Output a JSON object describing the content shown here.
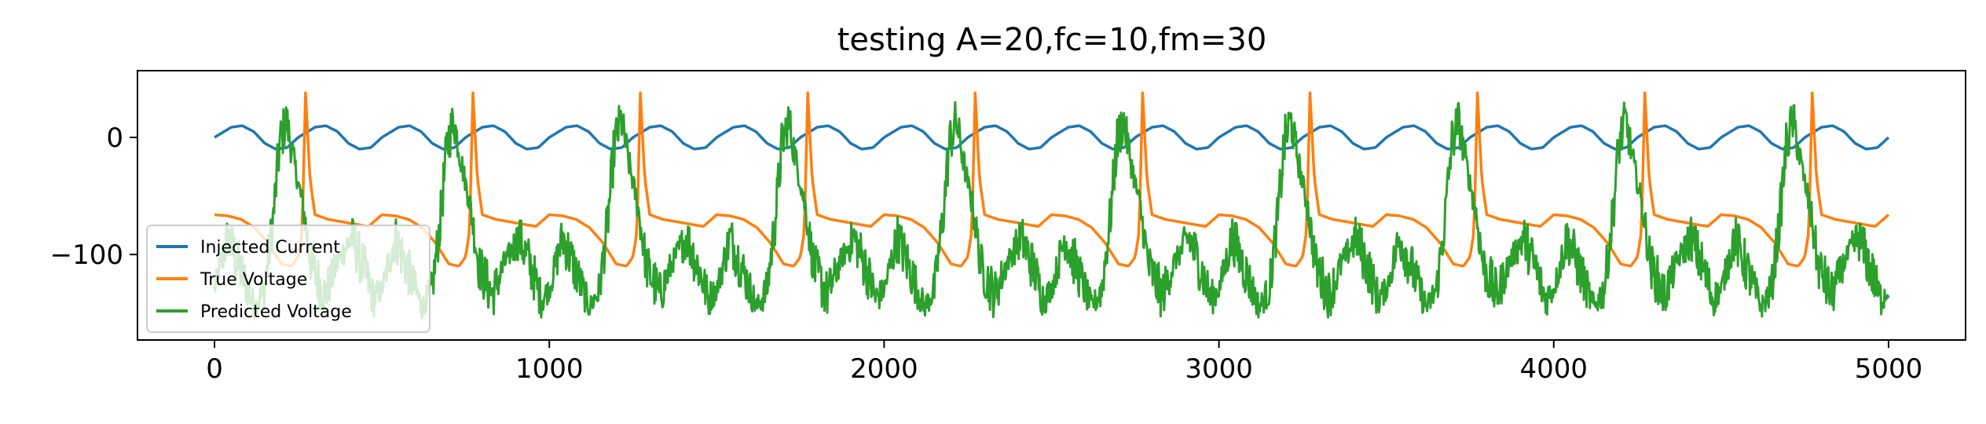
{
  "chart_data": {
    "type": "line",
    "title": "testing A=20,fc=10,fm=30",
    "xlabel": "",
    "ylabel": "",
    "xlim": [
      -230,
      5230
    ],
    "ylim": [
      -173,
      57
    ],
    "xticks": [
      0,
      1000,
      2000,
      3000,
      4000,
      5000
    ],
    "xtick_labels": [
      "0",
      "1000",
      "2000",
      "3000",
      "4000",
      "5000"
    ],
    "yticks": [
      0,
      -100
    ],
    "ytick_labels": [
      "0",
      "−100"
    ],
    "grid": false,
    "legend_position": "lower-left",
    "series": [
      {
        "name": "Injected Current",
        "color": "#1f77b4",
        "x": [
          0,
          50,
          83,
          117,
          150,
          183,
          217,
          250,
          300,
          333,
          367,
          400,
          433,
          467,
          500
        ],
        "y": [
          0,
          8.7,
          10,
          5,
          -5,
          -10,
          -8.7,
          0,
          8.7,
          10,
          5,
          -5,
          -10,
          -8.7,
          0
        ],
        "period": 500
      },
      {
        "name": "True Voltage",
        "color": "#ff7f0e",
        "x": [
          0,
          40,
          80,
          120,
          160,
          200,
          230,
          250,
          262,
          272,
          285,
          300,
          340,
          380,
          420,
          460,
          500
        ],
        "y": [
          -66,
          -67,
          -70,
          -77,
          -90,
          -108,
          -110,
          -102,
          -80,
          38,
          -35,
          -66,
          -70,
          -72,
          -74,
          -76,
          -66
        ],
        "period": 500
      },
      {
        "name": "Predicted Voltage",
        "color": "#2ca02c",
        "x": [
          0,
          40,
          80,
          120,
          150,
          175,
          195,
          215,
          240,
          265,
          290,
          330,
          370,
          410,
          450,
          475,
          500
        ],
        "y": [
          -130,
          -85,
          -115,
          -145,
          -130,
          -70,
          -5,
          15,
          -25,
          -60,
          -110,
          -135,
          -105,
          -85,
          -115,
          -138,
          -130
        ],
        "noise_amplitude": 22,
        "period": 500
      }
    ],
    "x_range": [
      0,
      5000
    ]
  }
}
